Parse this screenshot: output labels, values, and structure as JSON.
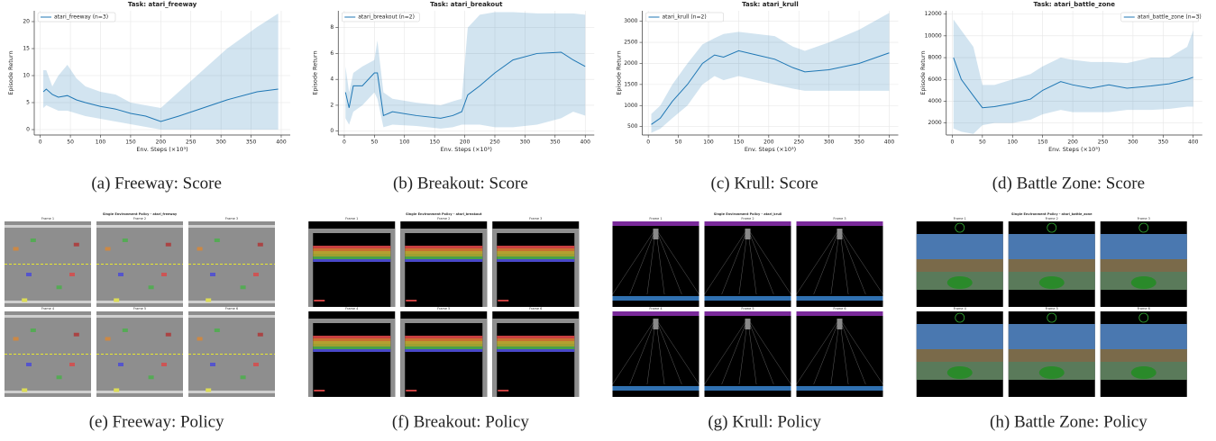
{
  "chart_data": [
    {
      "type": "line",
      "title": "Task: atari_freeway",
      "xlabel": "Env. Steps (×10³)",
      "ylabel": "Episode Return",
      "caption": "(a) Freeway: Score",
      "x": [
        5,
        10,
        20,
        30,
        45,
        60,
        75,
        100,
        125,
        150,
        175,
        200,
        230,
        270,
        310,
        360,
        395
      ],
      "series": [
        {
          "name": "atari_freeway (n=3)",
          "color": "#1f77b4",
          "values": [
            7,
            7.5,
            6.5,
            6,
            6.3,
            5.5,
            5,
            4.3,
            3.8,
            3,
            2.5,
            1.5,
            2.5,
            4,
            5.5,
            7,
            7.5
          ],
          "lower": [
            4,
            4.5,
            4,
            3.5,
            3.5,
            3,
            2.5,
            2,
            1.5,
            1,
            0.5,
            0,
            0,
            0,
            0,
            0,
            0
          ],
          "upper": [
            11,
            11,
            8,
            10,
            12,
            9.5,
            8,
            7,
            6.5,
            5,
            4.5,
            4,
            7,
            11,
            15,
            19,
            21.5
          ]
        }
      ],
      "xlim": [
        -10,
        415
      ],
      "xticks": [
        0,
        50,
        100,
        150,
        200,
        250,
        300,
        350,
        400
      ],
      "ylim": [
        -1,
        22
      ],
      "yticks": [
        0,
        5,
        10,
        15,
        20
      ],
      "grid": true,
      "legend": "upper-left"
    },
    {
      "type": "line",
      "title": "Task: atari_breakout",
      "xlabel": "Env. Steps (×10³)",
      "ylabel": "Episode Return",
      "caption": "(b) Breakout: Score",
      "x": [
        2,
        8,
        15,
        30,
        50,
        55,
        65,
        80,
        120,
        160,
        180,
        195,
        205,
        225,
        250,
        280,
        320,
        360,
        380,
        400
      ],
      "series": [
        {
          "name": "atari_breakout (n=2)",
          "color": "#1f77b4",
          "values": [
            3,
            1.8,
            3.5,
            3.5,
            4.5,
            4.5,
            1.2,
            1.5,
            1.2,
            1,
            1.2,
            1.5,
            2.8,
            3.5,
            4.5,
            5.5,
            6,
            6.1,
            5.5,
            5
          ],
          "lower": [
            1,
            0.5,
            1.5,
            2,
            3,
            2.5,
            0.3,
            0.5,
            0.4,
            0.2,
            0.3,
            0.5,
            0.5,
            0.5,
            0.3,
            0.3,
            0.5,
            1,
            1.5,
            1.2
          ],
          "upper": [
            5,
            3,
            4.5,
            5,
            5.5,
            7,
            3,
            2.5,
            2.2,
            2,
            2.3,
            2.5,
            8,
            9,
            9.2,
            9.2,
            9.1,
            9.1,
            9.1,
            9
          ]
        }
      ],
      "xlim": [
        -10,
        415
      ],
      "xticks": [
        0,
        50,
        100,
        150,
        200,
        250,
        300,
        350,
        400
      ],
      "ylim": [
        -0.3,
        9.3
      ],
      "yticks": [
        0,
        2,
        4,
        6,
        8
      ],
      "grid": true,
      "legend": "upper-left"
    },
    {
      "type": "line",
      "title": "Task: atari_krull",
      "xlabel": "Env. Steps (×10³)",
      "ylabel": "Episode Return",
      "caption": "(c) Krull: Score",
      "x": [
        5,
        20,
        40,
        65,
        90,
        110,
        125,
        150,
        180,
        210,
        240,
        260,
        300,
        350,
        400
      ],
      "series": [
        {
          "name": "atari_krull (n=2)",
          "color": "#1f77b4",
          "values": [
            550,
            700,
            1100,
            1500,
            2000,
            2200,
            2150,
            2300,
            2200,
            2100,
            1900,
            1800,
            1850,
            2000,
            2250
          ],
          "lower": [
            350,
            450,
            700,
            1000,
            1500,
            1700,
            1600,
            1700,
            1600,
            1500,
            1400,
            1350,
            1350,
            1350,
            1350
          ],
          "upper": [
            800,
            1000,
            1500,
            2000,
            2450,
            2600,
            2700,
            2750,
            2700,
            2650,
            2400,
            2300,
            2500,
            2800,
            3200
          ]
        }
      ],
      "xlim": [
        -10,
        415
      ],
      "xticks": [
        0,
        50,
        100,
        150,
        200,
        250,
        300,
        350,
        400
      ],
      "ylim": [
        300,
        3250
      ],
      "yticks": [
        500,
        1000,
        1500,
        2000,
        2500,
        3000
      ],
      "grid": true,
      "legend": "upper-left"
    },
    {
      "type": "line",
      "title": "Task: atari_battle_zone",
      "xlabel": "Env. Steps (×10³)",
      "ylabel": "Episode Return",
      "caption": "(d) Battle Zone: Score",
      "x": [
        2,
        15,
        35,
        50,
        70,
        100,
        130,
        150,
        180,
        200,
        230,
        260,
        290,
        330,
        360,
        390,
        400
      ],
      "series": [
        {
          "name": "atari_battle_zone (n=3)",
          "color": "#1f77b4",
          "values": [
            8000,
            6000,
            4500,
            3400,
            3500,
            3800,
            4200,
            5000,
            5800,
            5500,
            5200,
            5500,
            5200,
            5400,
            5600,
            6000,
            6200
          ],
          "lower": [
            1500,
            1200,
            1000,
            1800,
            2000,
            2000,
            2300,
            2800,
            3200,
            3000,
            3000,
            3000,
            3200,
            3200,
            3300,
            3500,
            3500
          ],
          "upper": [
            11500,
            10500,
            9000,
            5500,
            5500,
            6000,
            6500,
            7200,
            8000,
            7800,
            7600,
            7600,
            7500,
            8000,
            8000,
            9000,
            10500
          ]
        }
      ],
      "xlim": [
        -10,
        415
      ],
      "xticks": [
        0,
        50,
        100,
        150,
        200,
        250,
        300,
        350,
        400
      ],
      "ylim": [
        900,
        12300
      ],
      "yticks": [
        2000,
        4000,
        6000,
        8000,
        10000,
        12000
      ],
      "grid": true,
      "legend": "upper-right"
    }
  ],
  "policy_panels": [
    {
      "title": "Single Environment Policy - atari_freeway",
      "frames": [
        "Frame 1",
        "Frame 2",
        "Frame 3",
        "Frame 4",
        "Frame 5",
        "Frame 6"
      ],
      "caption": "(e) Freeway: Policy"
    },
    {
      "title": "Single Environment Policy - atari_breakout",
      "frames": [
        "Frame 1",
        "Frame 2",
        "Frame 3",
        "Frame 4",
        "Frame 5",
        "Frame 6"
      ],
      "caption": "(f) Breakout: Policy"
    },
    {
      "title": "Single Environment Policy - atari_krull",
      "frames": [
        "Frame 1",
        "Frame 2",
        "Frame 3",
        "Frame 4",
        "Frame 5",
        "Frame 6"
      ],
      "caption": "(g) Krull: Policy"
    },
    {
      "title": "Single Environment Policy - atari_battle_zone",
      "frames": [
        "Frame 1",
        "Frame 2",
        "Frame 3",
        "Frame 4",
        "Frame 5",
        "Frame 6"
      ],
      "caption": "(h) Battle Zone: Policy"
    }
  ]
}
